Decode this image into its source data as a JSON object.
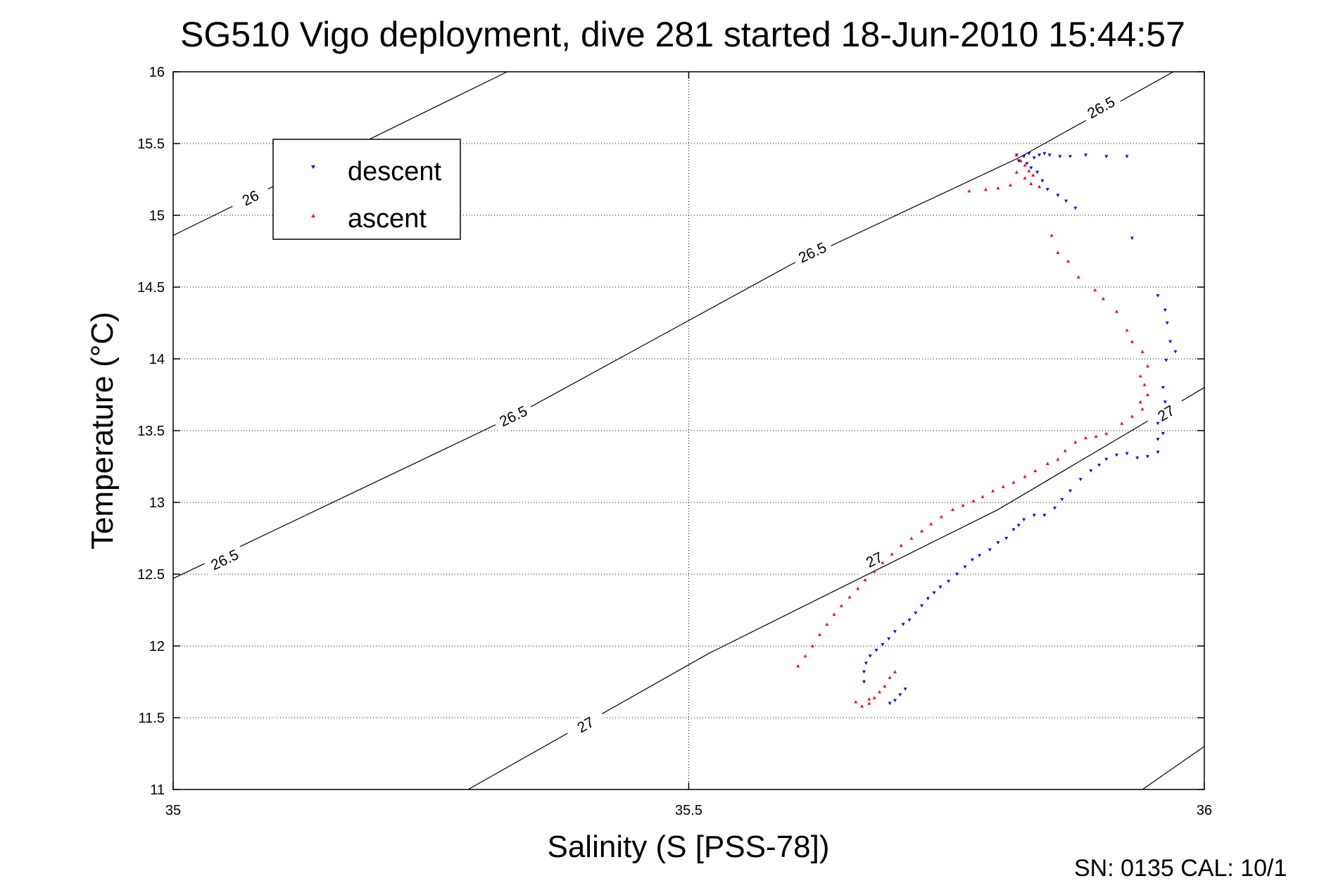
{
  "chart_data": {
    "type": "scatter",
    "title": "SG510 Vigo deployment, dive 281 started 18-Jun-2010 15:44:57",
    "xlabel": "Salinity (S [PSS-78])",
    "ylabel": "Temperature (°C)",
    "xlim": [
      35,
      36
    ],
    "ylim": [
      11,
      16
    ],
    "xticks": [
      "35",
      "35.5",
      "36"
    ],
    "yticks": [
      "11",
      "11.5",
      "12",
      "12.5",
      "13",
      "13.5",
      "14",
      "14.5",
      "15",
      "15.5",
      "16"
    ],
    "grid": true,
    "legend_position": "top-left",
    "footer": "SN: 0135  CAL: 10/1",
    "density_contours": [
      {
        "label": "26",
        "points": [
          [
            35.0,
            14.86
          ],
          [
            35.324,
            16.0
          ]
        ],
        "label_at": [
          [
            35.075,
            15.12
          ]
        ]
      },
      {
        "label": "26.5",
        "points": [
          [
            35.0,
            12.47
          ],
          [
            35.33,
            13.6
          ],
          [
            35.6,
            14.66
          ],
          [
            35.82,
            15.4
          ],
          [
            35.97,
            16.0
          ]
        ],
        "label_at": [
          [
            35.05,
            12.6
          ],
          [
            35.33,
            13.6
          ],
          [
            35.62,
            14.74
          ],
          [
            35.9,
            15.75
          ]
        ]
      },
      {
        "label": "27",
        "points": [
          [
            35.286,
            11.0
          ],
          [
            35.52,
            11.95
          ],
          [
            35.8,
            12.95
          ],
          [
            36.0,
            13.8
          ]
        ],
        "label_at": [
          [
            35.4,
            11.45
          ],
          [
            35.68,
            12.6
          ],
          [
            35.963,
            13.62
          ]
        ]
      },
      {
        "label": "",
        "points": [
          [
            35.94,
            11.0
          ],
          [
            36.0,
            11.3
          ]
        ],
        "label_at": []
      }
    ],
    "series": [
      {
        "name": "descent",
        "color": "#0000ff",
        "marker": "triangle-down",
        "points": [
          [
            35.818,
            15.42
          ],
          [
            35.825,
            15.41
          ],
          [
            35.83,
            15.43
          ],
          [
            35.835,
            15.4
          ],
          [
            35.84,
            15.42
          ],
          [
            35.845,
            15.43
          ],
          [
            35.85,
            15.42
          ],
          [
            35.86,
            15.41
          ],
          [
            35.87,
            15.41
          ],
          [
            35.885,
            15.42
          ],
          [
            35.905,
            15.41
          ],
          [
            35.925,
            15.41
          ],
          [
            35.82,
            15.38
          ],
          [
            35.828,
            15.36
          ],
          [
            35.832,
            15.33
          ],
          [
            35.838,
            15.3
          ],
          [
            35.843,
            15.24
          ],
          [
            35.848,
            15.18
          ],
          [
            35.858,
            15.14
          ],
          [
            35.866,
            15.1
          ],
          [
            35.875,
            15.05
          ],
          [
            35.93,
            14.84
          ],
          [
            35.955,
            14.44
          ],
          [
            35.962,
            14.34
          ],
          [
            35.964,
            14.25
          ],
          [
            35.967,
            14.12
          ],
          [
            35.972,
            14.05
          ],
          [
            35.963,
            13.99
          ],
          [
            35.96,
            13.8
          ],
          [
            35.962,
            13.7
          ],
          [
            35.955,
            13.55
          ],
          [
            35.96,
            13.48
          ],
          [
            35.955,
            13.44
          ],
          [
            35.955,
            13.35
          ],
          [
            35.945,
            13.32
          ],
          [
            35.935,
            13.31
          ],
          [
            35.925,
            13.34
          ],
          [
            35.915,
            13.33
          ],
          [
            35.905,
            13.3
          ],
          [
            35.898,
            13.26
          ],
          [
            35.89,
            13.22
          ],
          [
            35.88,
            13.16
          ],
          [
            35.87,
            13.08
          ],
          [
            35.862,
            13.02
          ],
          [
            35.855,
            12.96
          ],
          [
            35.845,
            12.91
          ],
          [
            35.835,
            12.91
          ],
          [
            35.825,
            12.88
          ],
          [
            35.82,
            12.84
          ],
          [
            35.815,
            12.81
          ],
          [
            35.808,
            12.75
          ],
          [
            35.8,
            12.72
          ],
          [
            35.792,
            12.67
          ],
          [
            35.782,
            12.63
          ],
          [
            35.775,
            12.6
          ],
          [
            35.768,
            12.55
          ],
          [
            35.76,
            12.5
          ],
          [
            35.752,
            12.45
          ],
          [
            35.744,
            12.41
          ],
          [
            35.738,
            12.37
          ],
          [
            35.732,
            12.33
          ],
          [
            35.726,
            12.28
          ],
          [
            35.72,
            12.23
          ],
          [
            35.714,
            12.18
          ],
          [
            35.708,
            12.15
          ],
          [
            35.7,
            12.1
          ],
          [
            35.694,
            12.05
          ],
          [
            35.688,
            12.01
          ],
          [
            35.682,
            11.97
          ],
          [
            35.676,
            11.93
          ],
          [
            35.672,
            11.88
          ],
          [
            35.67,
            11.82
          ],
          [
            35.67,
            11.75
          ],
          [
            35.71,
            11.7
          ],
          [
            35.705,
            11.66
          ],
          [
            35.7,
            11.62
          ],
          [
            35.695,
            11.6
          ]
        ]
      },
      {
        "name": "ascent",
        "color": "#ff0000",
        "marker": "triangle-up",
        "points": [
          [
            35.818,
            15.42
          ],
          [
            35.822,
            15.38
          ],
          [
            35.826,
            15.35
          ],
          [
            35.83,
            15.31
          ],
          [
            35.834,
            15.28
          ],
          [
            35.818,
            15.3
          ],
          [
            35.826,
            15.26
          ],
          [
            35.832,
            15.22
          ],
          [
            35.812,
            15.21
          ],
          [
            35.8,
            15.19
          ],
          [
            35.788,
            15.18
          ],
          [
            35.772,
            15.17
          ],
          [
            35.84,
            15.2
          ],
          [
            35.852,
            14.86
          ],
          [
            35.858,
            14.74
          ],
          [
            35.868,
            14.68
          ],
          [
            35.878,
            14.57
          ],
          [
            35.894,
            14.48
          ],
          [
            35.902,
            14.42
          ],
          [
            35.915,
            14.33
          ],
          [
            35.925,
            14.2
          ],
          [
            35.93,
            14.12
          ],
          [
            35.94,
            14.05
          ],
          [
            35.945,
            13.95
          ],
          [
            35.938,
            13.88
          ],
          [
            35.942,
            13.82
          ],
          [
            35.945,
            13.75
          ],
          [
            35.938,
            13.7
          ],
          [
            35.94,
            13.65
          ],
          [
            35.93,
            13.6
          ],
          [
            35.92,
            13.55
          ],
          [
            35.905,
            13.48
          ],
          [
            35.895,
            13.46
          ],
          [
            35.885,
            13.45
          ],
          [
            35.875,
            13.42
          ],
          [
            35.865,
            13.36
          ],
          [
            35.858,
            13.3
          ],
          [
            35.848,
            13.27
          ],
          [
            35.836,
            13.22
          ],
          [
            35.826,
            13.18
          ],
          [
            35.815,
            13.14
          ],
          [
            35.805,
            13.11
          ],
          [
            35.795,
            13.08
          ],
          [
            35.785,
            13.04
          ],
          [
            35.776,
            13.01
          ],
          [
            35.766,
            12.98
          ],
          [
            35.756,
            12.95
          ],
          [
            35.745,
            12.9
          ],
          [
            35.735,
            12.85
          ],
          [
            35.726,
            12.8
          ],
          [
            35.716,
            12.75
          ],
          [
            35.706,
            12.7
          ],
          [
            35.697,
            12.64
          ],
          [
            35.688,
            12.58
          ],
          [
            35.68,
            12.52
          ],
          [
            35.671,
            12.46
          ],
          [
            35.664,
            12.4
          ],
          [
            35.656,
            12.34
          ],
          [
            35.648,
            12.28
          ],
          [
            35.641,
            12.22
          ],
          [
            35.634,
            12.15
          ],
          [
            35.627,
            12.08
          ],
          [
            35.62,
            12.0
          ],
          [
            35.613,
            11.93
          ],
          [
            35.606,
            11.86
          ],
          [
            35.7,
            11.82
          ],
          [
            35.695,
            11.78
          ],
          [
            35.69,
            11.72
          ],
          [
            35.685,
            11.68
          ],
          [
            35.68,
            11.64
          ],
          [
            35.675,
            11.6
          ],
          [
            35.662,
            11.61
          ],
          [
            35.668,
            11.58
          ],
          [
            35.675,
            11.63
          ]
        ]
      }
    ]
  }
}
